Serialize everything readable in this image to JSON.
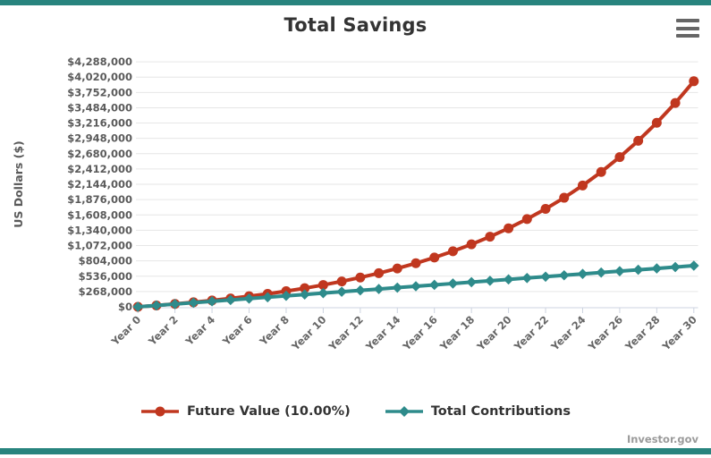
{
  "header": {
    "title": "Total Savings"
  },
  "attribution": "Investor.gov",
  "colors": {
    "accent_bar": "#28847E",
    "future_value": "#C0371F",
    "contributions": "#2E8B8B",
    "grid": "#E6E6E6",
    "axis_line": "#CCD3E0",
    "tick_label": "#5A5A5A",
    "x_label": "#666666",
    "title": "#333333",
    "menu_icon": "#666666",
    "attribution": "#9A9A9A"
  },
  "chart_data": {
    "type": "line",
    "title": "Total Savings",
    "xlabel": "",
    "ylabel": "US Dollars ($)",
    "ylim": [
      0,
      4288000
    ],
    "y_tick_interval": 268000,
    "grid": true,
    "legend_position": "bottom",
    "x_tick_step": 2,
    "categories": [
      "Year 0",
      "Year 1",
      "Year 2",
      "Year 3",
      "Year 4",
      "Year 5",
      "Year 6",
      "Year 7",
      "Year 8",
      "Year 9",
      "Year 10",
      "Year 11",
      "Year 12",
      "Year 13",
      "Year 14",
      "Year 15",
      "Year 16",
      "Year 17",
      "Year 18",
      "Year 19",
      "Year 20",
      "Year 21",
      "Year 22",
      "Year 23",
      "Year 24",
      "Year 25",
      "Year 26",
      "Year 27",
      "Year 28",
      "Year 29",
      "Year 30"
    ],
    "x_tick_labels": [
      "Year 0",
      "Year 2",
      "Year 4",
      "Year 6",
      "Year 8",
      "Year 10",
      "Year 12",
      "Year 14",
      "Year 16",
      "Year 18",
      "Year 20",
      "Year 22",
      "Year 24",
      "Year 26",
      "Year 28",
      "Year 30"
    ],
    "y_tick_labels": [
      "$0",
      "$268,000",
      "$536,000",
      "$804,000",
      "$1,072,000",
      "$1,340,000",
      "$1,608,000",
      "$1,876,000",
      "$2,144,000",
      "$2,412,000",
      "$2,680,000",
      "$2,948,000",
      "$3,216,000",
      "$3,484,000",
      "$3,752,000",
      "$4,020,000",
      "$4,288,000"
    ],
    "series": [
      {
        "name": "Future Value (10.00%)",
        "color": "#C0371F",
        "marker": "circle",
        "values": [
          0,
          24000,
          50400,
          79440,
          111384,
          146522,
          185175,
          227692,
          274461,
          325907,
          382498,
          444748,
          513223,
          588545,
          671400,
          762540,
          862794,
          973073,
          1094380,
          1227818,
          1374600,
          1536060,
          1713666,
          1909033,
          2123936,
          2360329,
          2620362,
          2906399,
          3221038,
          3567142,
          3947857
        ]
      },
      {
        "name": "Total Contributions",
        "color": "#2E8B8B",
        "marker": "diamond",
        "values": [
          0,
          24000,
          48000,
          72000,
          96000,
          120000,
          144000,
          168000,
          192000,
          216000,
          240000,
          264000,
          288000,
          312000,
          336000,
          360000,
          384000,
          408000,
          432000,
          456000,
          480000,
          504000,
          528000,
          552000,
          576000,
          600000,
          624000,
          648000,
          672000,
          696000,
          720000
        ]
      }
    ]
  },
  "legend": {
    "items": [
      {
        "label": "Future Value (10.00%)"
      },
      {
        "label": "Total Contributions"
      }
    ]
  }
}
